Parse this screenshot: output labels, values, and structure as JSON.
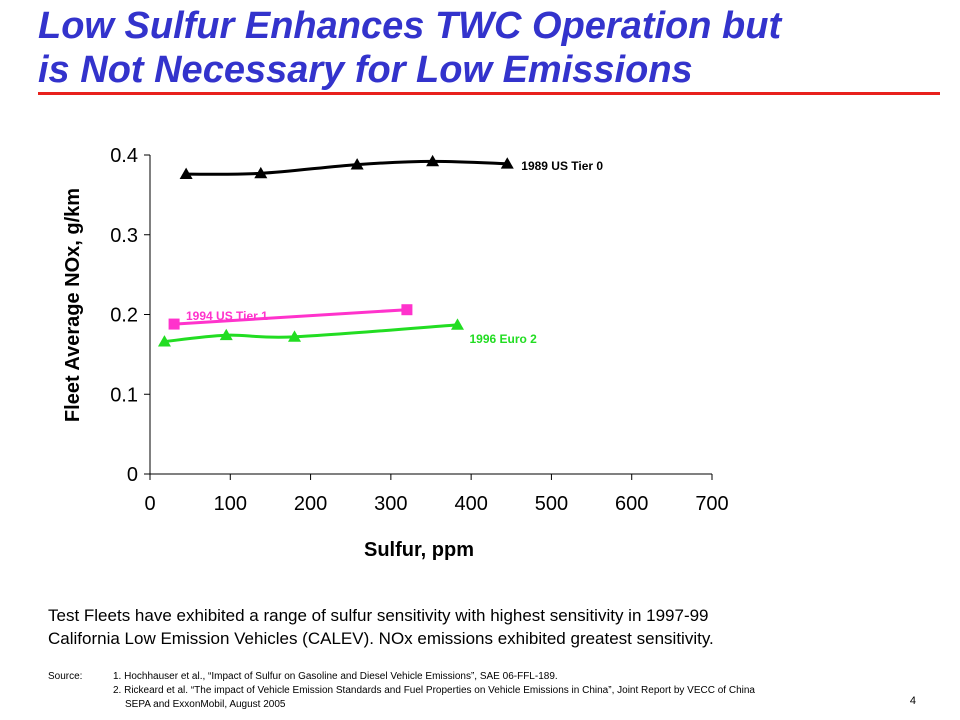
{
  "slide": {
    "title_line1": "Low Sulfur Enhances TWC Operation but",
    "title_line2": "is Not Necessary for Low Emissions",
    "caption_line1": "Test Fleets have exhibited a range of sulfur sensitivity with highest sensitivity in 1997-99",
    "caption_line2": "California Low Emission Vehicles (CALEV).  NOx emissions exhibited greatest sensitivity.",
    "source_label": "Source:",
    "source_1": "1. Hochhauser et al., “Impact of Sulfur on Gasoline and Diesel Vehicle Emissions”, SAE 06-FFL-189.",
    "source_2a": "2. Rickeard et al. “The impact of Vehicle Emission Standards and Fuel Properties on Vehicle Emissions in China”,  Joint Report by VECC of China",
    "source_2b": "SEPA and ExxonMobil, August 2005",
    "page_number": "4",
    "colors": {
      "title": "#3333cc",
      "rule": "#e8201c"
    }
  },
  "chart_data": {
    "type": "line",
    "title": "",
    "xlabel": "Sulfur, ppm",
    "ylabel": "Fleet Average NOx, g/km",
    "xlim": [
      0,
      700
    ],
    "ylim": [
      0,
      0.4
    ],
    "xticks": [
      0,
      100,
      200,
      300,
      400,
      500,
      600,
      700
    ],
    "xtick_labels": [
      "0",
      "100",
      "200",
      "300",
      "400",
      "500",
      "600",
      "700"
    ],
    "yticks": [
      0,
      0.1,
      0.2,
      0.3,
      0.4
    ],
    "ytick_labels": [
      "0",
      "0.1",
      "0.2",
      "0.3",
      "0.4"
    ],
    "grid": false,
    "legend": "none (series labeled directly)",
    "series": [
      {
        "name": "1989 US Tier 0",
        "color": "#000000",
        "marker": "triangle",
        "x": [
          45,
          138,
          258,
          352,
          445
        ],
        "y": [
          0.376,
          0.377,
          0.388,
          0.392,
          0.389
        ]
      },
      {
        "name": "1994 US Tier 1",
        "color": "#ff33cc",
        "marker": "square",
        "x": [
          30,
          320
        ],
        "y": [
          0.188,
          0.206
        ]
      },
      {
        "name": "1996 Euro 2",
        "color": "#22dd22",
        "marker": "triangle",
        "x": [
          18,
          95,
          180,
          383
        ],
        "y": [
          0.166,
          0.174,
          0.172,
          0.187
        ]
      }
    ]
  }
}
